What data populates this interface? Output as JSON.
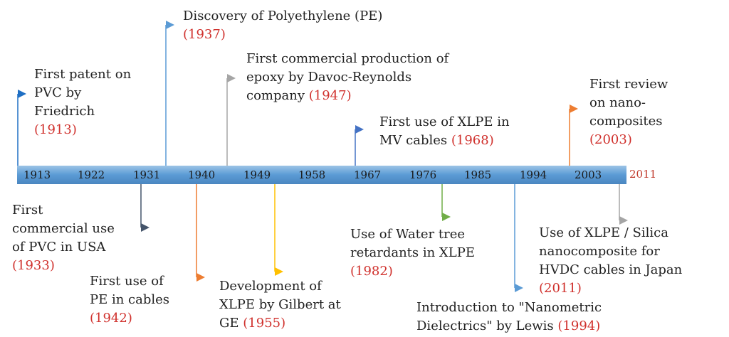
{
  "axis": {
    "years": [
      "1913",
      "1922",
      "1931",
      "1940",
      "1949",
      "1958",
      "1967",
      "1976",
      "1985",
      "1994",
      "2003"
    ],
    "end_year": "2011"
  },
  "events": [
    {
      "id": "pvc-patent",
      "text": "First patent on\nPVC by\nFriedrich",
      "year": "(1913)",
      "color": "#1f6fc4"
    },
    {
      "id": "pvc-commercial",
      "text": "First\ncommercial use\nof PVC in USA",
      "year": "(1933)",
      "color": "#44546a"
    },
    {
      "id": "pe-discovery",
      "text": "Discovery of Polyethylene (PE)",
      "year": "(1937)",
      "color": "#5b9bd5"
    },
    {
      "id": "pe-cables",
      "text": "First use of\nPE in cables",
      "year": "(1942)",
      "color": "#ed7d31"
    },
    {
      "id": "epoxy",
      "text": "First commercial production of\nepoxy by Davoc-Reynolds\ncompany",
      "year": "(1947)",
      "color": "#a5a5a5"
    },
    {
      "id": "xlpe-dev",
      "text": "Development of\nXLPE by Gilbert at\nGE",
      "year": "(1955)",
      "color": "#ffc000"
    },
    {
      "id": "xlpe-mv",
      "text": "First use of XLPE in\nMV cables",
      "year": "(1968)",
      "color": "#4472c4"
    },
    {
      "id": "water-tree",
      "text": "Use of Water tree\nretardants in XLPE",
      "year": "(1982)",
      "color": "#70ad47"
    },
    {
      "id": "nanometric",
      "text": "Introduction to \"Nanometric\nDielectrics\" by Lewis",
      "year": "(1994)",
      "color": "#5b9bd5"
    },
    {
      "id": "nano-review",
      "text": "First review\non nano-\ncomposites",
      "year": "(2003)",
      "color": "#ed7d31"
    },
    {
      "id": "xlpe-silica",
      "text": "Use of XLPE / Silica\nnanocomposite for\nHVDC cables in Japan",
      "year": "(2011)",
      "color": "#a5a5a5"
    }
  ]
}
